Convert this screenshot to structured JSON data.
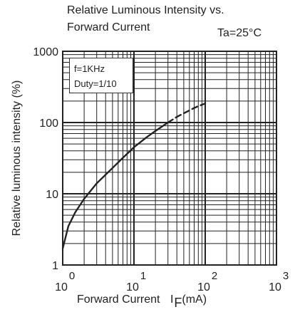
{
  "chart_data": {
    "type": "line",
    "title": "Relative Luminous Intensity vs. Forward Current",
    "title_lines": [
      "Relative Luminous Intensity vs.",
      "Forward Current"
    ],
    "condition": "Ta=25°C",
    "xlabel": "Forward Current",
    "xlabel_symbol": "I",
    "xlabel_subscript": "F",
    "xlabel_unit": "(mA)",
    "ylabel": "Relative luminous intensity (%)",
    "x_scale": "log",
    "y_scale": "log",
    "xlim": [
      1,
      1000
    ],
    "ylim": [
      1,
      1000
    ],
    "x_ticks": [
      {
        "base": "10",
        "exp": "0"
      },
      {
        "base": "10",
        "exp": "1"
      },
      {
        "base": "10",
        "exp": "2"
      },
      {
        "base": "10",
        "exp": "3"
      }
    ],
    "y_ticks": [
      "1",
      "10",
      "100",
      "1000"
    ],
    "grid": true,
    "legend_box": [
      "f=1KHz",
      "Duty=1/10"
    ],
    "legend_position": "top-left",
    "series": [
      {
        "style": "solid",
        "x": [
          1,
          1.2,
          1.5,
          2,
          3,
          5,
          7,
          10,
          15,
          20,
          30
        ],
        "y": [
          1.7,
          3.5,
          5.5,
          8.5,
          14,
          23,
          32,
          45,
          62,
          76,
          100
        ]
      },
      {
        "style": "dashed",
        "x": [
          30,
          40,
          50,
          60,
          70,
          80,
          100
        ],
        "y": [
          100,
          120,
          135,
          148,
          160,
          170,
          185
        ]
      }
    ],
    "colors": {
      "curve": "#222222",
      "grid": "#222222",
      "watermark": "#7fb2e0"
    }
  },
  "watermark": ""
}
